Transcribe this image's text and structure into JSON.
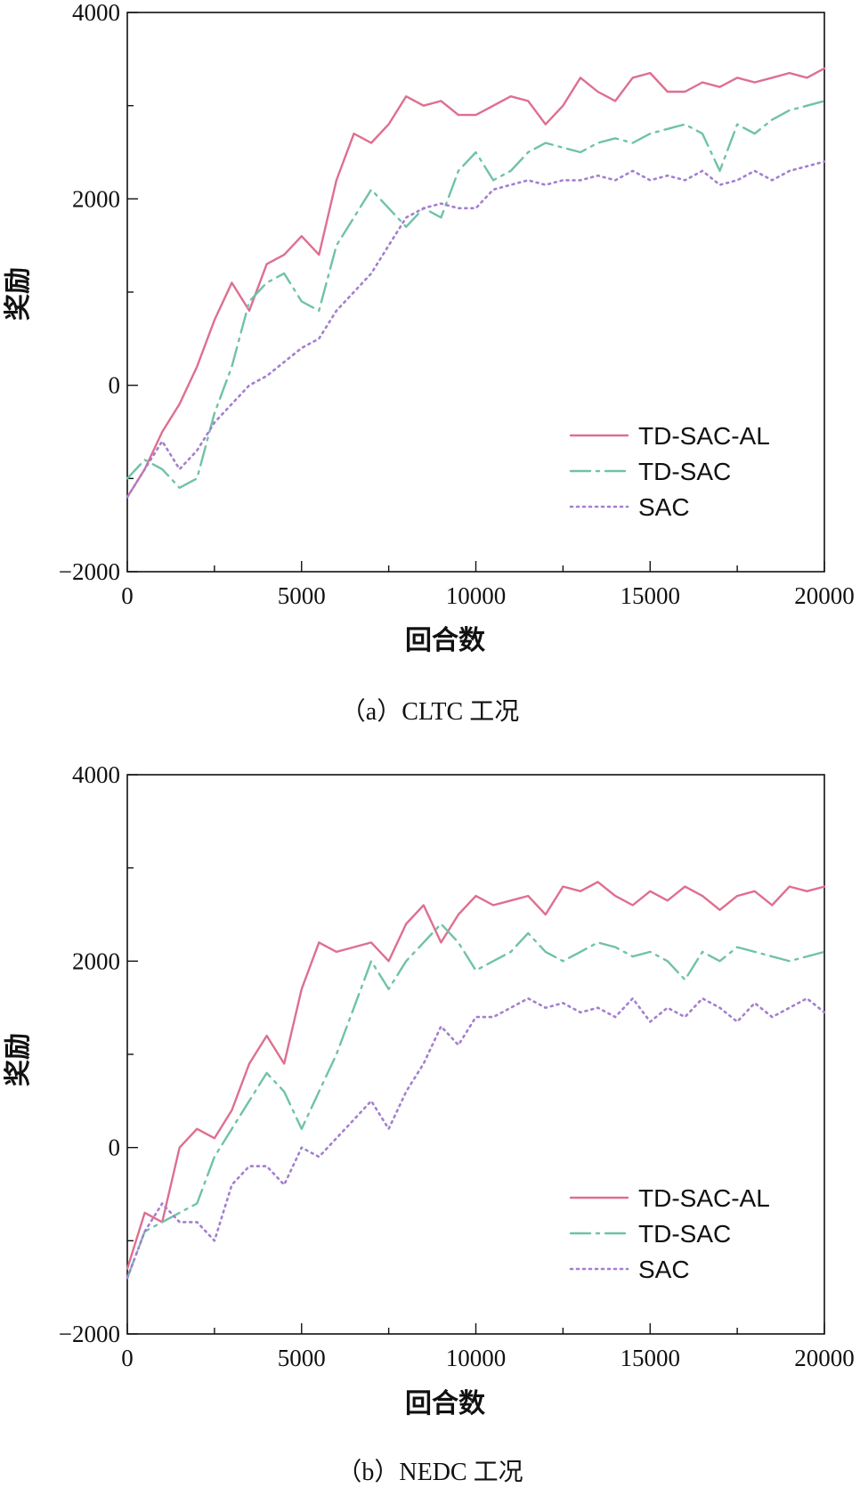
{
  "chart_data": [
    {
      "type": "line",
      "caption": "（a）CLTC 工况",
      "xlabel": "回合数",
      "ylabel": "奖励",
      "xlim": [
        0,
        20000
      ],
      "ylim": [
        -2000,
        4000
      ],
      "xticks": [
        "0",
        "5000",
        "10000",
        "15000",
        "20000"
      ],
      "yticks": [
        "−2000",
        "0",
        "2000",
        "4000"
      ],
      "legend_position": "lower-right",
      "series": [
        {
          "name": "TD-SAC-AL",
          "color": "#de6f8f",
          "style": "solid",
          "x": [
            0,
            500,
            1000,
            1500,
            2000,
            2500,
            3000,
            3500,
            4000,
            4500,
            5000,
            5500,
            6000,
            6500,
            7000,
            7500,
            8000,
            8500,
            9000,
            9500,
            10000,
            10500,
            11000,
            11500,
            12000,
            12500,
            13000,
            13500,
            14000,
            14500,
            15000,
            15500,
            16000,
            16500,
            17000,
            17500,
            18000,
            18500,
            19000,
            19500,
            20000
          ],
          "values": [
            -1200,
            -900,
            -500,
            -200,
            200,
            700,
            1100,
            800,
            1300,
            1400,
            1600,
            1400,
            2200,
            2700,
            2600,
            2800,
            3100,
            3000,
            3050,
            2900,
            2900,
            3000,
            3100,
            3050,
            2800,
            3000,
            3300,
            3150,
            3050,
            3300,
            3350,
            3150,
            3150,
            3250,
            3200,
            3300,
            3250,
            3300,
            3350,
            3300,
            3400
          ]
        },
        {
          "name": "TD-SAC",
          "color": "#6fc2a8",
          "style": "dashdot",
          "x": [
            0,
            500,
            1000,
            1500,
            2000,
            2500,
            3000,
            3500,
            4000,
            4500,
            5000,
            5500,
            6000,
            6500,
            7000,
            7500,
            8000,
            8500,
            9000,
            9500,
            10000,
            10500,
            11000,
            11500,
            12000,
            12500,
            13000,
            13500,
            14000,
            14500,
            15000,
            15500,
            16000,
            16500,
            17000,
            17500,
            18000,
            18500,
            19000,
            19500,
            20000
          ],
          "values": [
            -1000,
            -800,
            -900,
            -1100,
            -1000,
            -300,
            200,
            900,
            1100,
            1200,
            900,
            800,
            1500,
            1800,
            2100,
            1900,
            1700,
            1900,
            1800,
            2300,
            2500,
            2200,
            2300,
            2500,
            2600,
            2550,
            2500,
            2600,
            2650,
            2600,
            2700,
            2750,
            2800,
            2700,
            2300,
            2800,
            2700,
            2850,
            2950,
            3000,
            3050
          ]
        },
        {
          "name": "SAC",
          "color": "#a47fcf",
          "style": "dotted",
          "x": [
            0,
            500,
            1000,
            1500,
            2000,
            2500,
            3000,
            3500,
            4000,
            4500,
            5000,
            5500,
            6000,
            6500,
            7000,
            7500,
            8000,
            8500,
            9000,
            9500,
            10000,
            10500,
            11000,
            11500,
            12000,
            12500,
            13000,
            13500,
            14000,
            14500,
            15000,
            15500,
            16000,
            16500,
            17000,
            17500,
            18000,
            18500,
            19000,
            19500,
            20000
          ],
          "values": [
            -1200,
            -900,
            -600,
            -900,
            -700,
            -400,
            -200,
            0,
            100,
            250,
            400,
            500,
            800,
            1000,
            1200,
            1500,
            1800,
            1900,
            1950,
            1900,
            1900,
            2100,
            2150,
            2200,
            2150,
            2200,
            2200,
            2250,
            2200,
            2300,
            2200,
            2250,
            2200,
            2300,
            2150,
            2200,
            2300,
            2200,
            2300,
            2350,
            2400
          ]
        }
      ]
    },
    {
      "type": "line",
      "caption": "（b）NEDC 工况",
      "xlabel": "回合数",
      "ylabel": "奖励",
      "xlim": [
        0,
        20000
      ],
      "ylim": [
        -2000,
        4000
      ],
      "xticks": [
        "0",
        "5000",
        "10000",
        "15000",
        "20000"
      ],
      "yticks": [
        "−2000",
        "0",
        "2000",
        "4000"
      ],
      "legend_position": "lower-right",
      "series": [
        {
          "name": "TD-SAC-AL",
          "color": "#de6f8f",
          "style": "solid",
          "x": [
            0,
            500,
            1000,
            1500,
            2000,
            2500,
            3000,
            3500,
            4000,
            4500,
            5000,
            5500,
            6000,
            6500,
            7000,
            7500,
            8000,
            8500,
            9000,
            9500,
            10000,
            10500,
            11000,
            11500,
            12000,
            12500,
            13000,
            13500,
            14000,
            14500,
            15000,
            15500,
            16000,
            16500,
            17000,
            17500,
            18000,
            18500,
            19000,
            19500,
            20000
          ],
          "values": [
            -1300,
            -700,
            -800,
            0,
            200,
            100,
            400,
            900,
            1200,
            900,
            1700,
            2200,
            2100,
            2150,
            2200,
            2000,
            2400,
            2600,
            2200,
            2500,
            2700,
            2600,
            2650,
            2700,
            2500,
            2800,
            2750,
            2850,
            2700,
            2600,
            2750,
            2650,
            2800,
            2700,
            2550,
            2700,
            2750,
            2600,
            2800,
            2750,
            2800
          ]
        },
        {
          "name": "TD-SAC",
          "color": "#6fc2a8",
          "style": "dashdot",
          "x": [
            0,
            500,
            1000,
            1500,
            2000,
            2500,
            3000,
            3500,
            4000,
            4500,
            5000,
            5500,
            6000,
            6500,
            7000,
            7500,
            8000,
            8500,
            9000,
            9500,
            10000,
            10500,
            11000,
            11500,
            12000,
            12500,
            13000,
            13500,
            14000,
            14500,
            15000,
            15500,
            16000,
            16500,
            17000,
            17500,
            18000,
            18500,
            19000,
            19500,
            20000
          ],
          "values": [
            -1400,
            -900,
            -800,
            -700,
            -600,
            -100,
            200,
            500,
            800,
            600,
            200,
            600,
            1000,
            1500,
            2000,
            1700,
            2000,
            2200,
            2400,
            2200,
            1900,
            2000,
            2100,
            2300,
            2100,
            2000,
            2100,
            2200,
            2150,
            2050,
            2100,
            2000,
            1800,
            2100,
            2000,
            2150,
            2100,
            2050,
            2000,
            2050,
            2100
          ]
        },
        {
          "name": "SAC",
          "color": "#a47fcf",
          "style": "dotted",
          "x": [
            0,
            500,
            1000,
            1500,
            2000,
            2500,
            3000,
            3500,
            4000,
            4500,
            5000,
            5500,
            6000,
            6500,
            7000,
            7500,
            8000,
            8500,
            9000,
            9500,
            10000,
            10500,
            11000,
            11500,
            12000,
            12500,
            13000,
            13500,
            14000,
            14500,
            15000,
            15500,
            16000,
            16500,
            17000,
            17500,
            18000,
            18500,
            19000,
            19500,
            20000
          ],
          "values": [
            -1400,
            -900,
            -600,
            -800,
            -800,
            -1000,
            -400,
            -200,
            -200,
            -400,
            0,
            -100,
            100,
            300,
            500,
            200,
            600,
            900,
            1300,
            1100,
            1400,
            1400,
            1500,
            1600,
            1500,
            1550,
            1450,
            1500,
            1400,
            1600,
            1350,
            1500,
            1400,
            1600,
            1500,
            1350,
            1550,
            1400,
            1500,
            1600,
            1450
          ]
        }
      ]
    }
  ]
}
